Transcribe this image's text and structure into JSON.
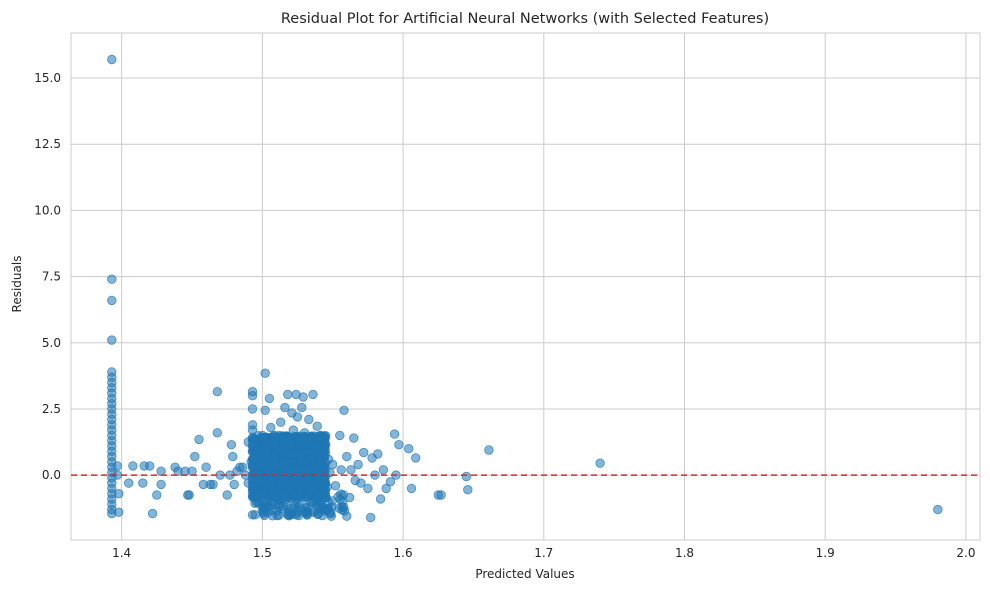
{
  "chart_data": {
    "type": "scatter",
    "title": "Residual Plot for Artificial Neural Networks (with Selected Features)",
    "xlabel": "Predicted Values",
    "ylabel": "Residuals",
    "xlim": [
      1.364,
      2.01
    ],
    "ylim": [
      -2.45,
      16.7
    ],
    "xticks": [
      1.4,
      1.5,
      1.6,
      1.7,
      1.8,
      1.9,
      2.0
    ],
    "xtick_labels": [
      "1.4",
      "1.5",
      "1.6",
      "1.7",
      "1.8",
      "1.9",
      "2.0"
    ],
    "yticks": [
      0.0,
      2.5,
      5.0,
      7.5,
      10.0,
      12.5,
      15.0
    ],
    "ytick_labels": [
      "0.0",
      "2.5",
      "5.0",
      "7.5",
      "10.0",
      "12.5",
      "15.0"
    ],
    "grid": true,
    "reference_line": {
      "y": 0,
      "color": "#d62728",
      "style": "dashed"
    },
    "series": [
      {
        "color": "#1f77b4",
        "alpha": 0.55,
        "points": [
          [
            1.393,
            15.7
          ],
          [
            1.393,
            7.4
          ],
          [
            1.393,
            6.6
          ],
          [
            1.393,
            5.1
          ],
          [
            1.393,
            3.9
          ],
          [
            1.393,
            3.7
          ],
          [
            1.393,
            3.5
          ],
          [
            1.393,
            3.3
          ],
          [
            1.393,
            3.1
          ],
          [
            1.393,
            2.9
          ],
          [
            1.393,
            2.7
          ],
          [
            1.393,
            2.5
          ],
          [
            1.393,
            2.3
          ],
          [
            1.393,
            2.1
          ],
          [
            1.393,
            1.9
          ],
          [
            1.393,
            1.7
          ],
          [
            1.393,
            1.5
          ],
          [
            1.393,
            1.3
          ],
          [
            1.393,
            1.1
          ],
          [
            1.393,
            0.9
          ],
          [
            1.393,
            0.7
          ],
          [
            1.393,
            0.5
          ],
          [
            1.393,
            0.3
          ],
          [
            1.393,
            0.1
          ],
          [
            1.393,
            -0.1
          ],
          [
            1.393,
            -0.3
          ],
          [
            1.393,
            -0.5
          ],
          [
            1.393,
            -0.7
          ],
          [
            1.393,
            -0.9
          ],
          [
            1.393,
            -1.1
          ],
          [
            1.393,
            -1.3
          ],
          [
            1.393,
            -1.45
          ],
          [
            1.397,
            0.35
          ],
          [
            1.397,
            0.0
          ],
          [
            1.398,
            -0.7
          ],
          [
            1.398,
            -1.4
          ],
          [
            1.405,
            -0.3
          ],
          [
            1.408,
            0.35
          ],
          [
            1.415,
            -0.3
          ],
          [
            1.416,
            0.35
          ],
          [
            1.42,
            0.35
          ],
          [
            1.422,
            -1.45
          ],
          [
            1.425,
            -0.75
          ],
          [
            1.428,
            0.15
          ],
          [
            1.428,
            -0.35
          ],
          [
            1.438,
            0.3
          ],
          [
            1.44,
            0.15
          ],
          [
            1.445,
            0.15
          ],
          [
            1.447,
            -0.75
          ],
          [
            1.448,
            -0.75
          ],
          [
            1.45,
            0.15
          ],
          [
            1.452,
            0.7
          ],
          [
            1.455,
            1.35
          ],
          [
            1.458,
            -0.35
          ],
          [
            1.46,
            0.3
          ],
          [
            1.463,
            -0.35
          ],
          [
            1.465,
            -0.35
          ],
          [
            1.468,
            1.6
          ],
          [
            1.468,
            3.15
          ],
          [
            1.47,
            0.0
          ],
          [
            1.475,
            -0.75
          ],
          [
            1.477,
            0.0
          ],
          [
            1.478,
            1.15
          ],
          [
            1.479,
            0.7
          ],
          [
            1.48,
            -0.35
          ],
          [
            1.482,
            0.15
          ],
          [
            1.484,
            0.3
          ],
          [
            1.486,
            0.3
          ],
          [
            1.488,
            0.0
          ],
          [
            1.49,
            1.25
          ],
          [
            1.49,
            -0.3
          ],
          [
            1.492,
            0.5
          ],
          [
            1.493,
            3.15
          ],
          [
            1.493,
            3.0
          ],
          [
            1.493,
            2.5
          ],
          [
            1.493,
            1.9
          ],
          [
            1.493,
            1.7
          ],
          [
            1.493,
            1.4
          ],
          [
            1.493,
            1.1
          ],
          [
            1.493,
            0.9
          ],
          [
            1.493,
            0.6
          ],
          [
            1.493,
            0.3
          ],
          [
            1.493,
            0.0
          ],
          [
            1.493,
            -0.3
          ],
          [
            1.493,
            -0.6
          ],
          [
            1.493,
            -0.8
          ],
          [
            1.493,
            -1.5
          ],
          [
            1.495,
            0.15
          ],
          [
            1.497,
            -0.7
          ],
          [
            1.498,
            0.4
          ],
          [
            1.5,
            1.5
          ],
          [
            1.5,
            -0.2
          ],
          [
            1.502,
            3.85
          ],
          [
            1.502,
            2.45
          ],
          [
            1.503,
            0.9
          ],
          [
            1.503,
            -1.25
          ],
          [
            1.505,
            0.0
          ],
          [
            1.505,
            2.9
          ],
          [
            1.506,
            1.8
          ],
          [
            1.507,
            -0.5
          ],
          [
            1.508,
            0.7
          ],
          [
            1.509,
            1.2
          ],
          [
            1.51,
            -0.8
          ],
          [
            1.51,
            0.3
          ],
          [
            1.512,
            1.5
          ],
          [
            1.512,
            -0.3
          ],
          [
            1.513,
            2.0
          ],
          [
            1.514,
            0.0
          ],
          [
            1.515,
            1.0
          ],
          [
            1.515,
            -0.75
          ],
          [
            1.516,
            2.55
          ],
          [
            1.517,
            0.5
          ],
          [
            1.518,
            -1.5
          ],
          [
            1.518,
            3.05
          ],
          [
            1.519,
            1.3
          ],
          [
            1.52,
            0.2
          ],
          [
            1.52,
            -0.5
          ],
          [
            1.521,
            2.35
          ],
          [
            1.522,
            1.7
          ],
          [
            1.522,
            -0.2
          ],
          [
            1.523,
            0.8
          ],
          [
            1.524,
            3.05
          ],
          [
            1.524,
            -1.5
          ],
          [
            1.525,
            2.2
          ],
          [
            1.526,
            0.0
          ],
          [
            1.527,
            1.2
          ],
          [
            1.527,
            -0.8
          ],
          [
            1.528,
            2.55
          ],
          [
            1.528,
            0.5
          ],
          [
            1.529,
            2.95
          ],
          [
            1.53,
            -0.3
          ],
          [
            1.53,
            1.6
          ],
          [
            1.531,
            -1.2
          ],
          [
            1.532,
            0.9
          ],
          [
            1.533,
            2.1
          ],
          [
            1.534,
            0.2
          ],
          [
            1.535,
            -0.6
          ],
          [
            1.536,
            3.05
          ],
          [
            1.537,
            1.1
          ],
          [
            1.538,
            0.0
          ],
          [
            1.539,
            1.85
          ],
          [
            1.54,
            -0.3
          ],
          [
            1.541,
            0.6
          ],
          [
            1.542,
            1.3
          ],
          [
            1.543,
            -0.75
          ],
          [
            1.544,
            0.25
          ],
          [
            1.545,
            1.15
          ],
          [
            1.546,
            -0.45
          ],
          [
            1.547,
            0.6
          ],
          [
            1.548,
            0.1
          ],
          [
            1.549,
            -1.55
          ],
          [
            1.55,
            0.4
          ],
          [
            1.552,
            -0.4
          ],
          [
            1.555,
            1.5
          ],
          [
            1.556,
            0.2
          ],
          [
            1.558,
            2.45
          ],
          [
            1.56,
            -1.55
          ],
          [
            1.56,
            0.7
          ],
          [
            1.562,
            -0.85
          ],
          [
            1.563,
            0.2
          ],
          [
            1.565,
            1.4
          ],
          [
            1.566,
            -0.2
          ],
          [
            1.568,
            0.4
          ],
          [
            1.57,
            -0.3
          ],
          [
            1.572,
            0.85
          ],
          [
            1.575,
            -0.5
          ],
          [
            1.577,
            -1.6
          ],
          [
            1.578,
            0.65
          ],
          [
            1.58,
            0.0
          ],
          [
            1.582,
            0.8
          ],
          [
            1.584,
            -0.9
          ],
          [
            1.586,
            0.2
          ],
          [
            1.588,
            -0.5
          ],
          [
            1.591,
            -0.25
          ],
          [
            1.594,
            1.55
          ],
          [
            1.595,
            0.0
          ],
          [
            1.597,
            1.15
          ],
          [
            1.604,
            1.0
          ],
          [
            1.606,
            -0.5
          ],
          [
            1.609,
            0.65
          ],
          [
            1.625,
            -0.75
          ],
          [
            1.627,
            -0.75
          ],
          [
            1.645,
            -0.05
          ],
          [
            1.646,
            -0.55
          ],
          [
            1.661,
            0.95
          ],
          [
            1.74,
            0.45
          ],
          [
            1.98,
            -1.3
          ]
        ]
      }
    ],
    "dense_clusters": [
      {
        "x_range": [
          1.493,
          1.545
        ],
        "y_range": [
          -0.8,
          1.5
        ],
        "count": 1400
      },
      {
        "x_range": [
          1.493,
          1.56
        ],
        "y_range": [
          -1.55,
          -0.7
        ],
        "count": 120
      }
    ]
  }
}
